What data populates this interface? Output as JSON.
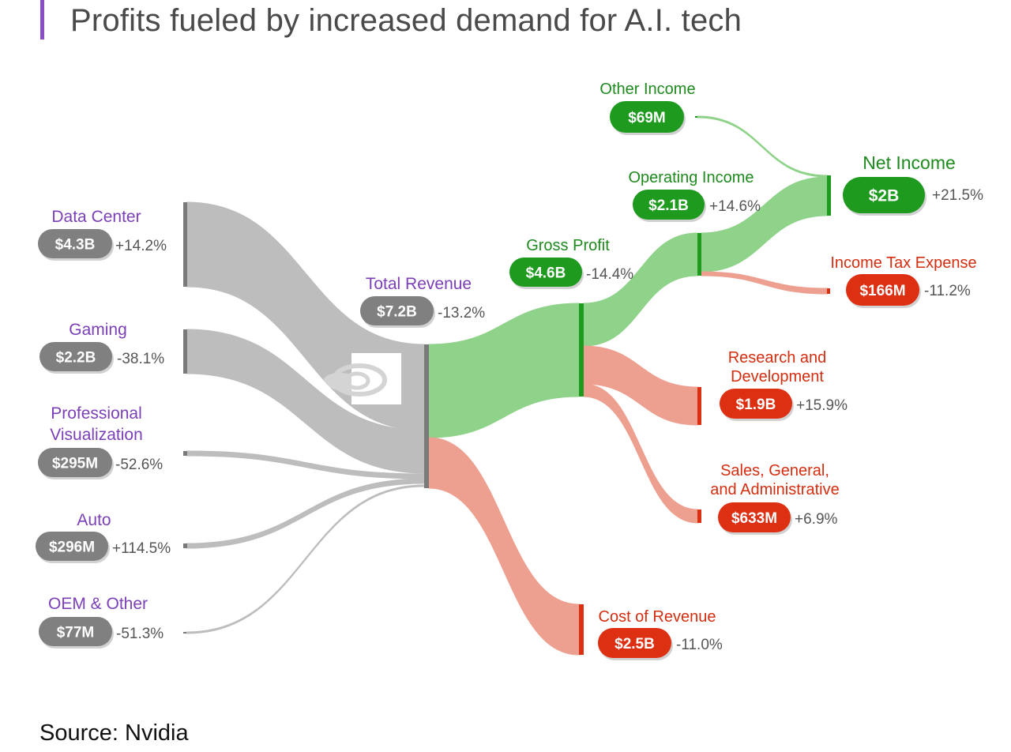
{
  "title": "Profits fueled by increased demand for A.I. tech",
  "source": "Source: Nvidia",
  "colors": {
    "revenue": "#bdbdbd",
    "revenue_bar": "#7a7a7a",
    "revenue_pill": "#808080",
    "category_text": "#7b3fb8",
    "profit_flow": "#8fd28a",
    "profit_bar": "#1e9a1e",
    "profit_pill": "#1e9a1e",
    "profit_text": "#1e8a1e",
    "cost_flow": "#eda090",
    "cost_bar": "#dd2f12",
    "cost_pill": "#dd2f12",
    "cost_text": "#d42e10",
    "change_text": "#555555"
  },
  "chart_data": {
    "type": "sankey",
    "unit": "USD",
    "nodes": [
      {
        "id": "data_center",
        "label": "Data Center",
        "value": "$4.3B",
        "change": "+14.2%",
        "group": "revenue"
      },
      {
        "id": "gaming",
        "label": "Gaming",
        "value": "$2.2B",
        "change": "-38.1%",
        "group": "revenue"
      },
      {
        "id": "pro_viz",
        "label": "Professional Visualization",
        "value": "$295M",
        "change": "-52.6%",
        "group": "revenue"
      },
      {
        "id": "auto",
        "label": "Auto",
        "value": "$296M",
        "change": "+114.5%",
        "group": "revenue"
      },
      {
        "id": "oem",
        "label": "OEM & Other",
        "value": "$77M",
        "change": "-51.3%",
        "group": "revenue"
      },
      {
        "id": "total_revenue",
        "label": "Total Revenue",
        "value": "$7.2B",
        "change": "-13.2%",
        "group": "revenue"
      },
      {
        "id": "gross_profit",
        "label": "Gross Profit",
        "value": "$4.6B",
        "change": "-14.4%",
        "group": "profit"
      },
      {
        "id": "cost_of_revenue",
        "label": "Cost of Revenue",
        "value": "$2.5B",
        "change": "-11.0%",
        "group": "cost"
      },
      {
        "id": "operating_income",
        "label": "Operating Income",
        "value": "$2.1B",
        "change": "+14.6%",
        "group": "profit"
      },
      {
        "id": "rnd",
        "label": "Research and Development",
        "value": "$1.9B",
        "change": "+15.9%",
        "group": "cost"
      },
      {
        "id": "sga",
        "label": "Sales, General, and Administrative",
        "value": "$633M",
        "change": "+6.9%",
        "group": "cost"
      },
      {
        "id": "other_income",
        "label": "Other Income",
        "value": "$69M",
        "change": "",
        "group": "profit"
      },
      {
        "id": "net_income",
        "label": "Net Income",
        "value": "$2B",
        "change": "+21.5%",
        "group": "profit"
      },
      {
        "id": "income_tax",
        "label": "Income Tax Expense",
        "value": "$166M",
        "change": "-11.2%",
        "group": "cost"
      }
    ],
    "links": [
      {
        "source": "data_center",
        "target": "total_revenue",
        "value": 4.3
      },
      {
        "source": "gaming",
        "target": "total_revenue",
        "value": 2.2
      },
      {
        "source": "pro_viz",
        "target": "total_revenue",
        "value": 0.295
      },
      {
        "source": "auto",
        "target": "total_revenue",
        "value": 0.296
      },
      {
        "source": "oem",
        "target": "total_revenue",
        "value": 0.077
      },
      {
        "source": "total_revenue",
        "target": "gross_profit",
        "value": 4.6
      },
      {
        "source": "total_revenue",
        "target": "cost_of_revenue",
        "value": 2.5
      },
      {
        "source": "gross_profit",
        "target": "operating_income",
        "value": 2.1
      },
      {
        "source": "gross_profit",
        "target": "rnd",
        "value": 1.9
      },
      {
        "source": "gross_profit",
        "target": "sga",
        "value": 0.633
      },
      {
        "source": "operating_income",
        "target": "net_income",
        "value": 2.0
      },
      {
        "source": "operating_income",
        "target": "income_tax",
        "value": 0.166
      },
      {
        "source": "other_income",
        "target": "net_income",
        "value": 0.069
      }
    ]
  }
}
